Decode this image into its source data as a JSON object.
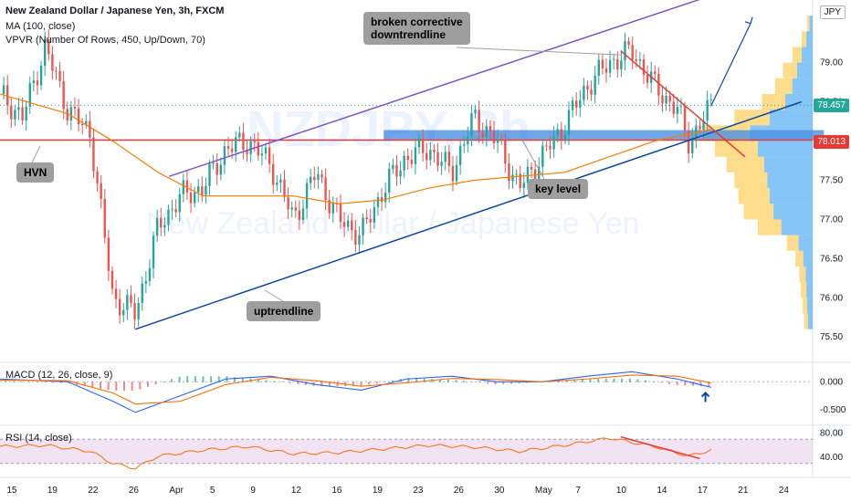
{
  "header": {
    "symbol_line": "New Zealand Dollar / Japanese Yen, 3h, FXCM",
    "ma_line": "MA (100, close)",
    "vpvr_line": "VPVR (Number Of Rows, 450, Up/Down, 70)",
    "currency_badge": "JPY"
  },
  "watermark": {
    "ticker": "NZDJPY, 3h",
    "name": "New Zealand Dollar / Japanese Yen"
  },
  "annotations": {
    "hvn": "HVN",
    "broken_line1": "broken corrective",
    "broken_line2": "downtrendline",
    "key_level": "key level",
    "uptrendline": "uptrendline"
  },
  "price_tags": {
    "current": "78.457",
    "level": "78.013"
  },
  "macd_label": "MACD (12, 26, close, 9)",
  "rsi_label": "RSI (14, close)",
  "colors": {
    "up": "#26a69a",
    "down": "#ef5350",
    "ma": "#f57c00",
    "channel_top": "#7e57c2",
    "uptrend": "#0d47a1",
    "level": "#e53935",
    "zone": "#4a90e2",
    "vol_up": "#fbc02d",
    "vol_down": "#2196f3",
    "macd": "#2962ff",
    "signal": "#ff6d00",
    "rsi": "#ff6d00",
    "rsi_band": "#e1bee7"
  },
  "chart_data": {
    "type": "candlestick",
    "price_axis": {
      "ticks": [
        79.0,
        78.5,
        78.0,
        77.5,
        77.0,
        76.5,
        76.0,
        75.5
      ],
      "ylim": [
        75.2,
        79.8
      ]
    },
    "x_axis": {
      "ticks": [
        "15",
        "19",
        "22",
        "26",
        "Apr",
        "5",
        "9",
        "12",
        "16",
        "19",
        "23",
        "26",
        "30",
        "May",
        "7",
        "10",
        "14",
        "17",
        "21",
        "24"
      ],
      "range_days": [
        0,
        72
      ]
    },
    "key_level": 78.013,
    "current_price": 78.457,
    "ma_period": 100,
    "path": [
      [
        0,
        78.6
      ],
      [
        2,
        78.3
      ],
      [
        4,
        79.2
      ],
      [
        6,
        78.4
      ],
      [
        8,
        78.1
      ],
      [
        10,
        76.0
      ],
      [
        12,
        75.8
      ],
      [
        14,
        76.9
      ],
      [
        16,
        77.3
      ],
      [
        18,
        77.4
      ],
      [
        20,
        77.9
      ],
      [
        22,
        78.0
      ],
      [
        24,
        77.7
      ],
      [
        26,
        77.0
      ],
      [
        28,
        77.6
      ],
      [
        30,
        77.0
      ],
      [
        32,
        76.8
      ],
      [
        34,
        77.4
      ],
      [
        36,
        77.8
      ],
      [
        38,
        77.9
      ],
      [
        40,
        77.6
      ],
      [
        42,
        78.3
      ],
      [
        44,
        78.0
      ],
      [
        46,
        77.4
      ],
      [
        48,
        77.8
      ],
      [
        50,
        78.2
      ],
      [
        52,
        78.7
      ],
      [
        54,
        79.0
      ],
      [
        56,
        79.15
      ],
      [
        58,
        78.7
      ],
      [
        60,
        78.4
      ],
      [
        61,
        78.0
      ],
      [
        62,
        78.2
      ],
      [
        63,
        78.45
      ]
    ],
    "ma_values": [
      [
        0,
        78.6
      ],
      [
        6,
        78.35
      ],
      [
        10,
        78.0
      ],
      [
        14,
        77.6
      ],
      [
        18,
        77.3
      ],
      [
        22,
        77.3
      ],
      [
        26,
        77.3
      ],
      [
        30,
        77.2
      ],
      [
        34,
        77.25
      ],
      [
        38,
        77.4
      ],
      [
        42,
        77.5
      ],
      [
        46,
        77.55
      ],
      [
        50,
        77.6
      ],
      [
        54,
        77.8
      ],
      [
        58,
        78.0
      ],
      [
        63,
        78.15
      ]
    ],
    "trendlines": {
      "channel_top": {
        "start": [
          15,
          77.55
        ],
        "end": [
          66,
          80.0
        ]
      },
      "uptrend": {
        "start": [
          12,
          75.6
        ],
        "end": [
          71,
          78.5
        ]
      },
      "broken_downtrend": {
        "start": [
          55,
          79.15
        ],
        "end": [
          66,
          77.8
        ]
      },
      "projection": {
        "start": [
          63,
          78.45
        ],
        "end": [
          66.5,
          79.5
        ]
      }
    },
    "zone": {
      "from_day": 34,
      "to_day": 73,
      "low": 78.02,
      "high": 78.14
    },
    "volume_profile": {
      "prices": [
        79.5,
        79.3,
        79.1,
        78.9,
        78.7,
        78.5,
        78.3,
        78.1,
        77.9,
        77.7,
        77.5,
        77.3,
        77.1,
        76.9,
        76.7,
        76.5,
        76.3,
        76.1,
        75.9,
        75.7
      ],
      "up": [
        3,
        6,
        12,
        18,
        22,
        30,
        45,
        60,
        55,
        48,
        42,
        40,
        38,
        30,
        15,
        10,
        8,
        7,
        6,
        5
      ],
      "down": [
        4,
        8,
        14,
        20,
        26,
        35,
        55,
        80,
        70,
        62,
        58,
        55,
        50,
        40,
        18,
        12,
        9,
        8,
        7,
        6
      ]
    },
    "macd": {
      "axis_ticks": [
        0.0,
        -0.5
      ],
      "ylim": [
        -0.75,
        0.3
      ],
      "macd_line": [
        [
          0,
          0.05
        ],
        [
          6,
          0.0
        ],
        [
          10,
          -0.35
        ],
        [
          12,
          -0.55
        ],
        [
          16,
          -0.25
        ],
        [
          20,
          0.05
        ],
        [
          24,
          0.1
        ],
        [
          28,
          -0.05
        ],
        [
          32,
          -0.15
        ],
        [
          36,
          0.05
        ],
        [
          40,
          0.1
        ],
        [
          44,
          0.0
        ],
        [
          48,
          0.0
        ],
        [
          52,
          0.1
        ],
        [
          56,
          0.18
        ],
        [
          60,
          0.05
        ],
        [
          63,
          -0.1
        ]
      ],
      "signal_line": [
        [
          0,
          0.03
        ],
        [
          6,
          0.02
        ],
        [
          10,
          -0.2
        ],
        [
          12,
          -0.4
        ],
        [
          16,
          -0.35
        ],
        [
          20,
          -0.05
        ],
        [
          24,
          0.08
        ],
        [
          28,
          0.02
        ],
        [
          32,
          -0.08
        ],
        [
          36,
          -0.02
        ],
        [
          40,
          0.06
        ],
        [
          44,
          0.04
        ],
        [
          48,
          0.0
        ],
        [
          52,
          0.05
        ],
        [
          56,
          0.12
        ],
        [
          60,
          0.1
        ],
        [
          63,
          -0.02
        ]
      ]
    },
    "rsi": {
      "axis_ticks": [
        80.0,
        40.0
      ],
      "ylim": [
        10,
        90
      ],
      "band": [
        30,
        70
      ],
      "values": [
        [
          0,
          58
        ],
        [
          4,
          60
        ],
        [
          8,
          50
        ],
        [
          10,
          30
        ],
        [
          12,
          22
        ],
        [
          14,
          42
        ],
        [
          18,
          52
        ],
        [
          22,
          58
        ],
        [
          26,
          46
        ],
        [
          30,
          48
        ],
        [
          34,
          54
        ],
        [
          38,
          60
        ],
        [
          42,
          57
        ],
        [
          46,
          50
        ],
        [
          50,
          60
        ],
        [
          54,
          72
        ],
        [
          58,
          58
        ],
        [
          61,
          42
        ],
        [
          63,
          52
        ]
      ],
      "downline": {
        "start": [
          55,
          74
        ],
        "end": [
          62,
          38
        ]
      }
    }
  }
}
